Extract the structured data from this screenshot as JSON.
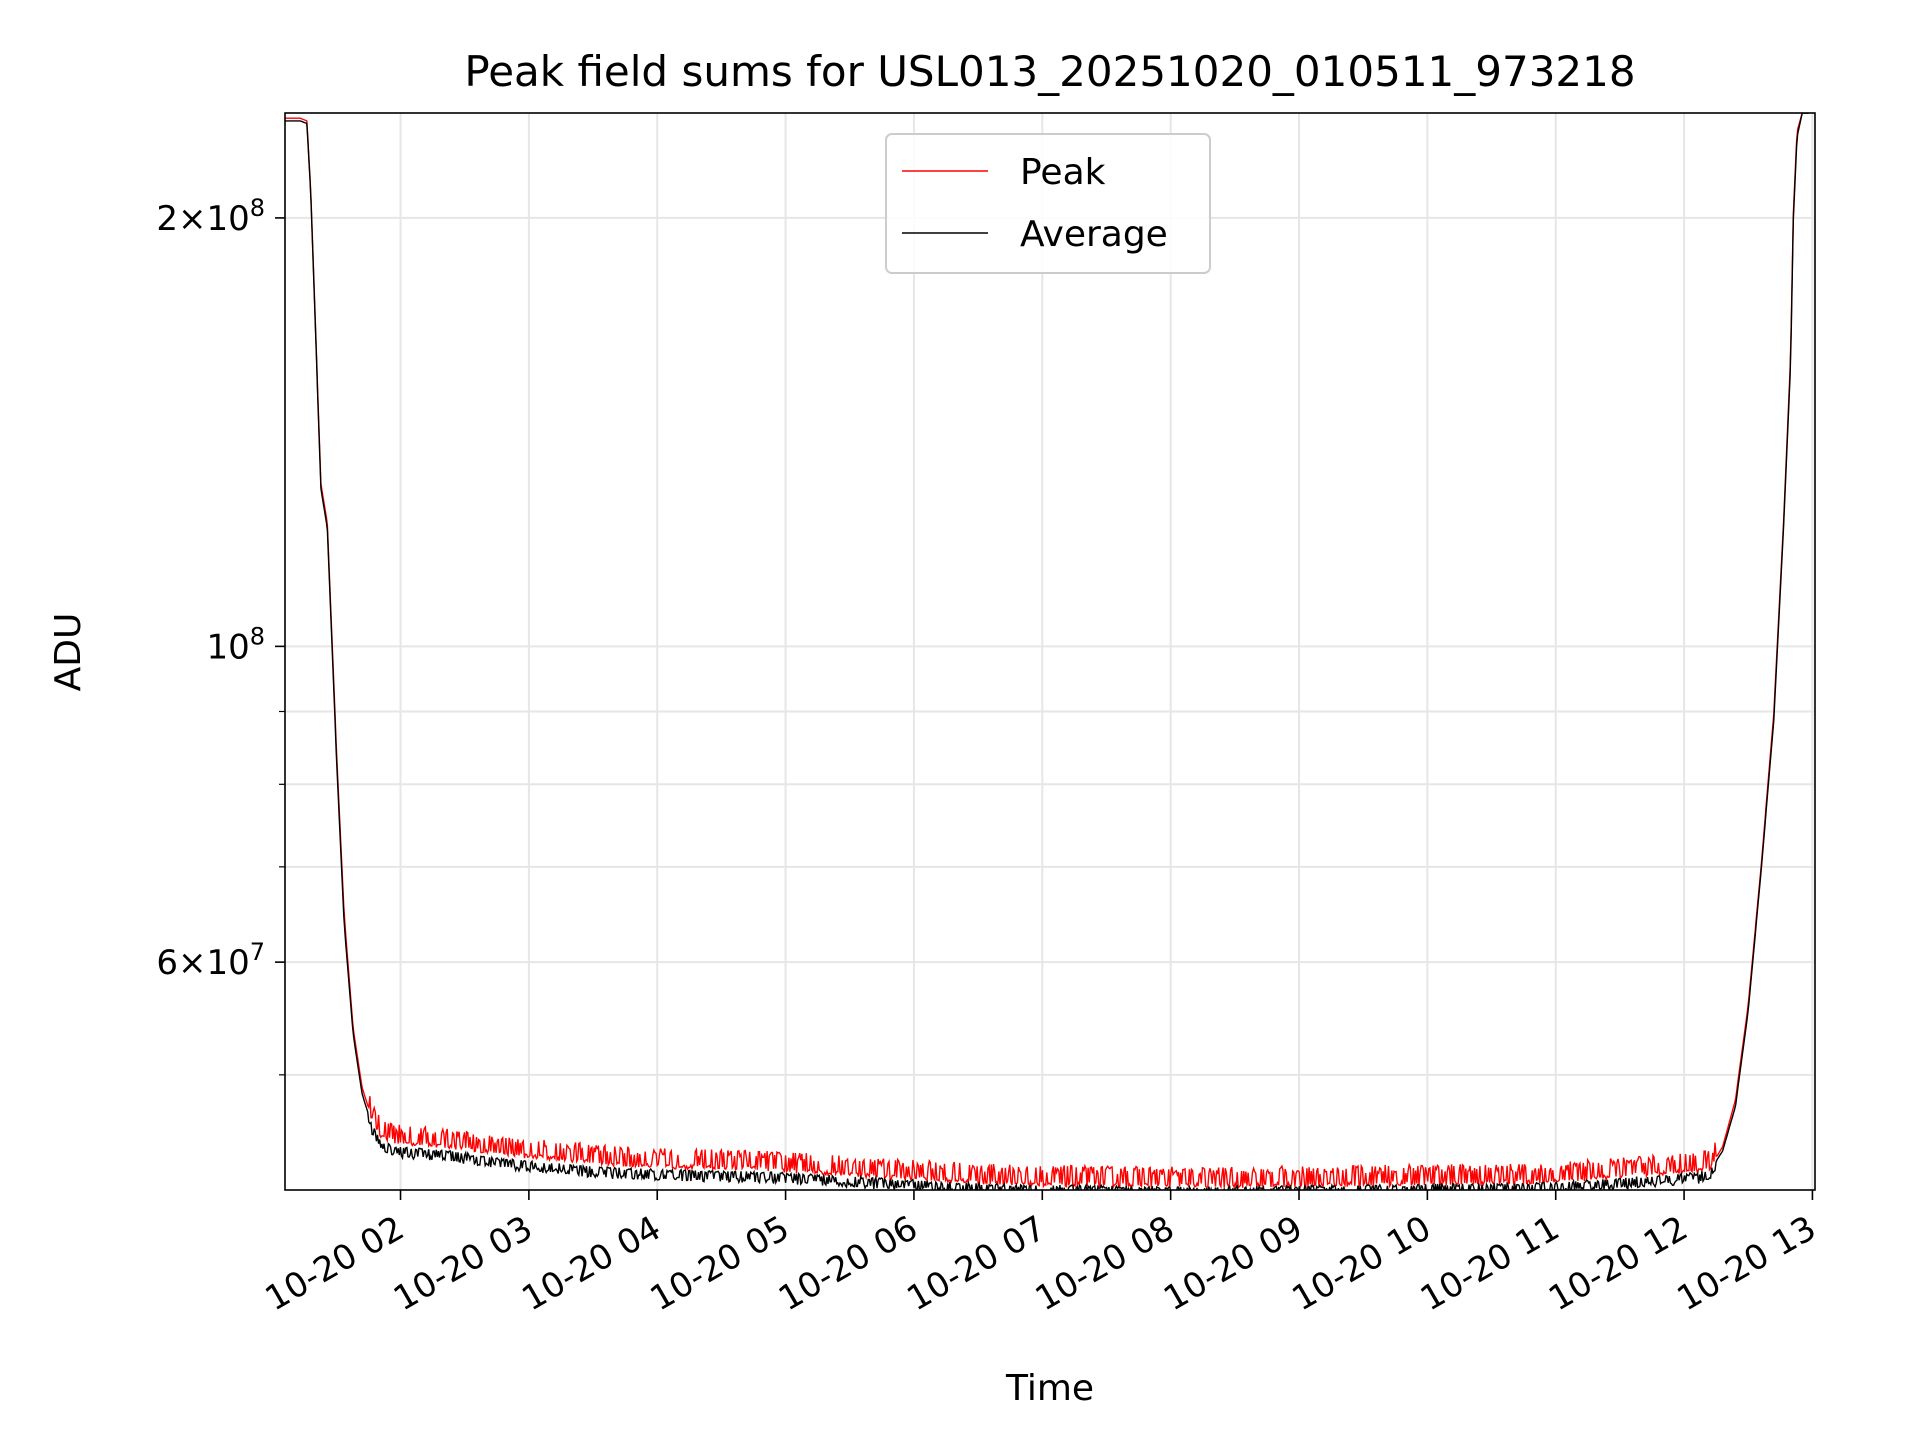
{
  "chart_data": {
    "type": "line",
    "title": "Peak field sums for USL013_20251020_010511_973218",
    "xlabel": "Time",
    "ylabel": "ADU",
    "yscale": "log",
    "ylim": [
      41500000,
      237000000
    ],
    "xlim_hours": [
      1.1,
      13.02
    ],
    "grid": true,
    "legend_position": "upper center",
    "x_tick_labels": [
      "10-20 02",
      "10-20 03",
      "10-20 04",
      "10-20 05",
      "10-20 06",
      "10-20 07",
      "10-20 08",
      "10-20 09",
      "10-20 10",
      "10-20 11",
      "10-20 12",
      "10-20 13"
    ],
    "x_tick_hours": [
      2,
      3,
      4,
      5,
      6,
      7,
      8,
      9,
      10,
      11,
      12,
      13
    ],
    "y_major_ticks": [
      {
        "value": 200000000,
        "mantissa": "2",
        "exponent": "8"
      },
      {
        "value": 100000000,
        "mantissa": "",
        "exponent": "8"
      },
      {
        "value": 60000000,
        "mantissa": "6",
        "exponent": "7"
      }
    ],
    "y_minor_grid_values": [
      200000000,
      100000000,
      90000000,
      80000000,
      70000000,
      60000000,
      50000000
    ],
    "y_minor_tick_values": [
      90000000,
      80000000,
      70000000,
      50000000
    ],
    "series": [
      {
        "name": "Peak",
        "color": "#ff0000",
        "spike_magnitude": 1300000,
        "x_hours": [
          1.1,
          1.22,
          1.27,
          1.3,
          1.38,
          1.43,
          1.45,
          1.5,
          1.56,
          1.63,
          1.7,
          1.78,
          1.85,
          1.95,
          2.0,
          2.3,
          2.5,
          2.7,
          2.9,
          3.2,
          3.5,
          3.8,
          4.1,
          4.4,
          4.7,
          5.0,
          5.3,
          5.6,
          6.0,
          6.3,
          6.6,
          7.0,
          7.5,
          8.0,
          8.5,
          9.0,
          9.5,
          10.0,
          10.3,
          10.5,
          10.8,
          11.0,
          11.3,
          11.6,
          11.9,
          12.1,
          12.2,
          12.3,
          12.4,
          12.5,
          12.6,
          12.7,
          12.78,
          12.83,
          12.85,
          12.88,
          12.92,
          12.97
        ],
        "values": [
          235000000,
          235000000,
          234000000,
          210000000,
          130000000,
          122000000,
          110000000,
          85000000,
          65000000,
          54000000,
          49000000,
          46500000,
          45200000,
          44900000,
          44800000,
          44600000,
          44400000,
          44100000,
          43900000,
          43700000,
          43400000,
          43200000,
          43100000,
          43050000,
          43000000,
          42850000,
          42700000,
          42500000,
          42300000,
          42150000,
          42000000,
          41900000,
          41850000,
          41800000,
          41800000,
          41850000,
          41900000,
          41950000,
          42000000,
          42000000,
          42050000,
          42100000,
          42300000,
          42500000,
          42700000,
          42800000,
          43000000,
          44500000,
          48000000,
          56000000,
          70000000,
          90000000,
          125000000,
          160000000,
          200000000,
          230000000,
          237000000,
          237000000
        ]
      },
      {
        "name": "Average",
        "color": "#000000",
        "spike_magnitude": 700000,
        "x_hours": [
          1.1,
          1.22,
          1.27,
          1.3,
          1.38,
          1.43,
          1.45,
          1.5,
          1.56,
          1.63,
          1.7,
          1.78,
          1.85,
          1.95,
          2.0,
          2.3,
          2.5,
          2.7,
          2.9,
          3.2,
          3.5,
          3.8,
          4.1,
          4.4,
          4.7,
          5.0,
          5.3,
          5.6,
          6.0,
          6.3,
          6.6,
          7.0,
          7.5,
          8.0,
          8.5,
          9.0,
          9.5,
          10.0,
          10.3,
          10.5,
          10.8,
          11.0,
          11.3,
          11.6,
          11.9,
          12.1,
          12.2,
          12.3,
          12.4,
          12.5,
          12.6,
          12.7,
          12.78,
          12.83,
          12.85,
          12.88,
          12.92,
          12.97
        ],
        "values": [
          234000000,
          234000000,
          233000000,
          209000000,
          129000000,
          121000000,
          109000000,
          84000000,
          64000000,
          53500000,
          48500000,
          46000000,
          44800000,
          44500000,
          44400000,
          44200000,
          44000000,
          43700000,
          43500000,
          43300000,
          43000000,
          42900000,
          42800000,
          42750000,
          42700000,
          42600000,
          42450000,
          42300000,
          42100000,
          41950000,
          41850000,
          41750000,
          41700000,
          41650000,
          41650000,
          41700000,
          41750000,
          41800000,
          41850000,
          41850000,
          41900000,
          41950000,
          42100000,
          42300000,
          42500000,
          42600000,
          42800000,
          44200000,
          47500000,
          55500000,
          69500000,
          89000000,
          124000000,
          158000000,
          198000000,
          228000000,
          237000000,
          237000000
        ]
      }
    ]
  }
}
